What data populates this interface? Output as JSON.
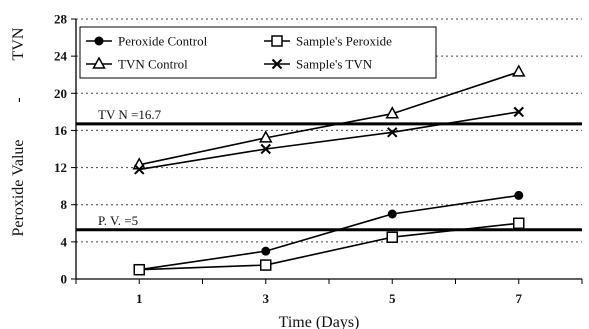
{
  "chart_data": {
    "type": "line",
    "xlabel": "Time (Days)",
    "ylabel_left": "Peroxide Value",
    "ylabel_top": "TVN",
    "ylabel_separator": "-",
    "x": [
      1,
      3,
      5,
      7
    ],
    "x_ticks": [
      "1",
      "3",
      "5",
      "7"
    ],
    "xlim": [
      0,
      8
    ],
    "ylim": [
      0,
      28
    ],
    "y_ticks": [
      "0",
      "4",
      "8",
      "12",
      "16",
      "20",
      "24",
      "28"
    ],
    "grid": "horizontal dotted",
    "legend_position": "top-left",
    "series": [
      {
        "name": "Peroxide Control",
        "marker": "filled-circle",
        "values": [
          1.0,
          3.0,
          7.0,
          9.0
        ]
      },
      {
        "name": "Sample's Peroxide",
        "marker": "open-square",
        "values": [
          1.0,
          1.5,
          4.5,
          6.0
        ]
      },
      {
        "name": "TVN Control",
        "marker": "open-triangle",
        "values": [
          12.3,
          15.2,
          17.8,
          22.3
        ]
      },
      {
        "name": "Sample's TVN",
        "marker": "cross",
        "values": [
          11.8,
          14.0,
          15.8,
          18.0
        ]
      }
    ],
    "reference_lines": [
      {
        "label": "TV N =16.7",
        "value": 16.7
      },
      {
        "label": "P. V. =5",
        "value": 5.3
      }
    ]
  }
}
